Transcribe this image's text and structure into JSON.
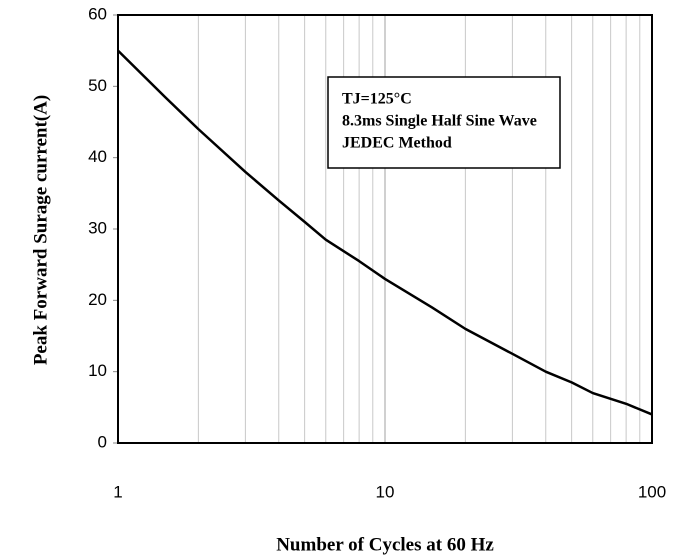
{
  "chart_data": {
    "type": "line",
    "xlabel": "Number of Cycles at 60 Hz",
    "ylabel": "Peak Forward Surage current(A)",
    "annotation": [
      "TJ=125°C",
      "8.3ms Single Half Sine Wave",
      "JEDEC Method"
    ],
    "x": [
      1,
      1.5,
      2,
      3,
      4,
      5,
      6,
      8,
      10,
      15,
      20,
      30,
      40,
      50,
      60,
      80,
      100
    ],
    "series": [
      {
        "color": "#000000",
        "values": [
          55,
          48.5,
          44,
          38,
          34,
          31,
          28.5,
          25.5,
          23,
          19,
          16,
          12.5,
          10,
          8.5,
          7,
          5.5,
          4
        ]
      }
    ],
    "xscale": "log",
    "xlim": [
      1,
      100
    ],
    "xticks": [
      1,
      10,
      100
    ],
    "xminorticks": [
      2,
      3,
      4,
      5,
      6,
      7,
      8,
      9,
      20,
      30,
      40,
      50,
      60,
      70,
      80,
      90
    ],
    "ylim": [
      0,
      60
    ],
    "yticks": [
      0,
      10,
      20,
      30,
      40,
      50,
      60
    ],
    "grid": "x"
  }
}
